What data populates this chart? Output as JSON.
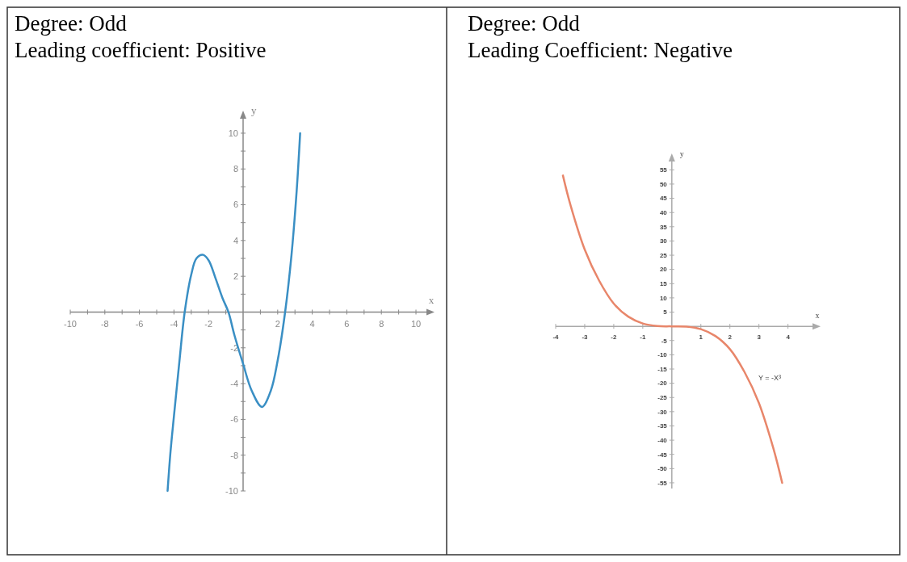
{
  "chart_data": [
    {
      "type": "line",
      "title": "Degree: Odd",
      "subtitle": "Leading coefficient: Positive",
      "xlabel": "x",
      "ylabel": "y",
      "x": [
        -4.37,
        -4.2,
        -4,
        -3.7,
        -3.38,
        -3,
        -2.7,
        -2.33,
        -2,
        -1.6,
        -1.2,
        -0.85,
        -0.5,
        0,
        0.5,
        1.09,
        1.6,
        2,
        2.43,
        2.8,
        3.1,
        3.3
      ],
      "series": [
        {
          "color": "#3a8fc4",
          "values": [
            -10,
            -7.8,
            -5.8,
            -2.9,
            0,
            2.1,
            3,
            3.2,
            2.9,
            1.9,
            0.8,
            0,
            -1.3,
            -2.9,
            -4.4,
            -5.3,
            -4.4,
            -2.7,
            0,
            3.2,
            6.8,
            10
          ]
        }
      ],
      "xlim": [
        -10,
        10.7
      ],
      "ylim": [
        -10,
        10.9
      ],
      "xticks": [
        -10,
        {
          "value": -9,
          "label": null
        },
        -8,
        {
          "value": -7,
          "label": null
        },
        -6,
        {
          "value": -5,
          "label": null
        },
        -4,
        {
          "value": -3,
          "label": null
        },
        -2,
        {
          "value": -1,
          "label": null
        },
        {
          "value": 1,
          "label": null
        },
        2,
        {
          "value": 3,
          "label": null
        },
        4,
        {
          "value": 5,
          "label": null
        },
        6,
        {
          "value": 7,
          "label": null
        },
        8,
        {
          "value": 9,
          "label": null
        },
        10
      ],
      "yticks": [
        -10,
        {
          "value": -9,
          "label": null
        },
        -8,
        {
          "value": -7,
          "label": null
        },
        -6,
        {
          "value": -5,
          "label": null
        },
        -4,
        {
          "value": -3,
          "label": null
        },
        -2,
        {
          "value": -1,
          "label": null
        },
        {
          "value": 1,
          "label": null
        },
        2,
        {
          "value": 3,
          "label": null
        },
        4,
        {
          "value": 5,
          "label": null
        },
        6,
        {
          "value": 7,
          "label": null
        },
        8,
        {
          "value": 9,
          "label": null
        },
        10
      ]
    },
    {
      "type": "line",
      "title": "Degree: Odd",
      "subtitle": "Leading Coefficient: Negative",
      "xlabel": "x",
      "ylabel": "y",
      "x": [
        -3.75,
        -3.5,
        -3,
        -2.5,
        -2,
        -1.5,
        -1,
        -0.5,
        0,
        0.5,
        1,
        1.5,
        2,
        2.5,
        3,
        3.5,
        3.8
      ],
      "series": [
        {
          "color": "#e8866a",
          "values": [
            53,
            43,
            27,
            16,
            8,
            3.4,
            1,
            0.1,
            0,
            -0.1,
            -1,
            -3.4,
            -8,
            -16,
            -27,
            -43,
            -55
          ]
        }
      ],
      "xlim": [
        -4,
        4.9
      ],
      "ylim": [
        -57,
        58.5
      ],
      "xticks": [
        -4,
        -3,
        -2,
        -1,
        1,
        2,
        3,
        4
      ],
      "yticks": [
        -55,
        -50,
        -45,
        -40,
        -35,
        -30,
        -25,
        -20,
        -15,
        -10,
        -5,
        5,
        10,
        15,
        20,
        25,
        30,
        35,
        40,
        45,
        50,
        55
      ],
      "annotations": [
        "Y = -X³"
      ]
    }
  ]
}
